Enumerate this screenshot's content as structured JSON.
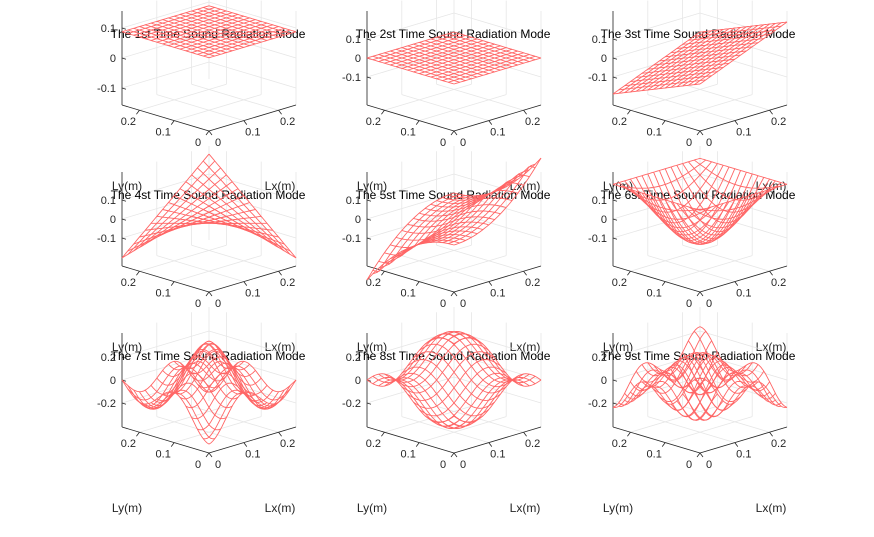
{
  "chart_data": [
    {
      "type": "surface",
      "title": "The 1st Time Sound Radiation Mode",
      "mode": 1,
      "xlabel": "Lx(m)",
      "ylabel": "Ly(m)",
      "xticks": [
        "0",
        "0.1",
        "0.2"
      ],
      "yticks": [
        "0",
        "0.1",
        "0.2"
      ],
      "zticks": [
        "0.1",
        "0",
        "-0.1"
      ],
      "xlim": [
        0,
        0.25
      ],
      "ylim": [
        0,
        0.25
      ],
      "zlim": [
        -0.12,
        0.12
      ],
      "grid": true,
      "color": "#ff6666"
    },
    {
      "type": "surface",
      "title": "The 2st Time Sound Radiation Mode",
      "mode": 2,
      "xlabel": "Lx(m)",
      "ylabel": "Ly(m)",
      "xticks": [
        "0",
        "0.1",
        "0.2"
      ],
      "yticks": [
        "0",
        "0.1",
        "0.2"
      ],
      "zticks": [
        "0.1",
        "0",
        "-0.1"
      ],
      "xlim": [
        0,
        0.25
      ],
      "ylim": [
        0,
        0.25
      ],
      "zlim": [
        -0.15,
        0.15
      ],
      "grid": true,
      "color": "#ff6666"
    },
    {
      "type": "surface",
      "title": "The 3st Time Sound Radiation Mode",
      "mode": 3,
      "xlabel": "Lx(m)",
      "ylabel": "Ly(m)",
      "xticks": [
        "0",
        "0.1",
        "0.2"
      ],
      "yticks": [
        "0",
        "0.1",
        "0.2"
      ],
      "zticks": [
        "0.1",
        "0",
        "-0.1"
      ],
      "xlim": [
        0,
        0.25
      ],
      "ylim": [
        0,
        0.25
      ],
      "zlim": [
        -0.15,
        0.15
      ],
      "grid": true,
      "color": "#ff6666"
    },
    {
      "type": "surface",
      "title": "The 4st Time Sound Radiation Mode",
      "mode": 4,
      "xlabel": "Lx(m)",
      "ylabel": "Ly(m)",
      "xticks": [
        "0",
        "0.1",
        "0.2"
      ],
      "yticks": [
        "0",
        "0.1",
        "0.2"
      ],
      "zticks": [
        "0.1",
        "0",
        "-0.1"
      ],
      "xlim": [
        0,
        0.25
      ],
      "ylim": [
        0,
        0.25
      ],
      "zlim": [
        -0.18,
        0.18
      ],
      "grid": true,
      "color": "#ff6666"
    },
    {
      "type": "surface",
      "title": "The 5st Time Sound Radiation Mode",
      "mode": 5,
      "xlabel": "Lx(m)",
      "ylabel": "Ly(m)",
      "xticks": [
        "0",
        "0.1",
        "0.2"
      ],
      "yticks": [
        "0",
        "0.1",
        "0.2"
      ],
      "zticks": [
        "0.1",
        "0",
        "-0.1"
      ],
      "xlim": [
        0,
        0.25
      ],
      "ylim": [
        0,
        0.25
      ],
      "zlim": [
        -0.15,
        0.15
      ],
      "grid": true,
      "color": "#ff6666"
    },
    {
      "type": "surface",
      "title": "The 6st Time Sound Radiation Mode",
      "mode": 6,
      "xlabel": "Lx(m)",
      "ylabel": "Ly(m)",
      "xticks": [
        "0",
        "0.1",
        "0.2"
      ],
      "yticks": [
        "0",
        "0.1",
        "0.2"
      ],
      "zticks": [
        "0.1",
        "0",
        "-0.1"
      ],
      "xlim": [
        0,
        0.25
      ],
      "ylim": [
        0,
        0.25
      ],
      "zlim": [
        -0.12,
        0.15
      ],
      "grid": true,
      "color": "#ff6666"
    },
    {
      "type": "surface",
      "title": "The 7st Time Sound Radiation Mode",
      "mode": 7,
      "xlabel": "Lx(m)",
      "ylabel": "Ly(m)",
      "xticks": [
        "0",
        "0.1",
        "0.2"
      ],
      "yticks": [
        "0",
        "0.1",
        "0.2"
      ],
      "zticks": [
        "0.2",
        "0",
        "-0.2"
      ],
      "xlim": [
        0,
        0.25
      ],
      "ylim": [
        0,
        0.25
      ],
      "zlim": [
        -0.28,
        0.28
      ],
      "grid": true,
      "color": "#ff6666"
    },
    {
      "type": "surface",
      "title": "The 8st Time Sound Radiation Mode",
      "mode": 8,
      "xlabel": "Lx(m)",
      "ylabel": "Ly(m)",
      "xticks": [
        "0",
        "0.1",
        "0.2"
      ],
      "yticks": [
        "0",
        "0.1",
        "0.2"
      ],
      "zticks": [
        "0.2",
        "0",
        "-0.2"
      ],
      "xlim": [
        0,
        0.25
      ],
      "ylim": [
        0,
        0.25
      ],
      "zlim": [
        -0.28,
        0.28
      ],
      "grid": true,
      "color": "#ff6666"
    },
    {
      "type": "surface",
      "title": "The 9st Time Sound Radiation Mode",
      "mode": 9,
      "xlabel": "Lx(m)",
      "ylabel": "Ly(m)",
      "xticks": [
        "0",
        "0.1",
        "0.2"
      ],
      "yticks": [
        "0",
        "0.1",
        "0.2"
      ],
      "zticks": [
        "0.2",
        "0",
        "-0.2"
      ],
      "xlim": [
        0,
        0.25
      ],
      "ylim": [
        0,
        0.25
      ],
      "zlim": [
        -0.28,
        0.28
      ],
      "grid": true,
      "color": "#ff6666"
    }
  ]
}
